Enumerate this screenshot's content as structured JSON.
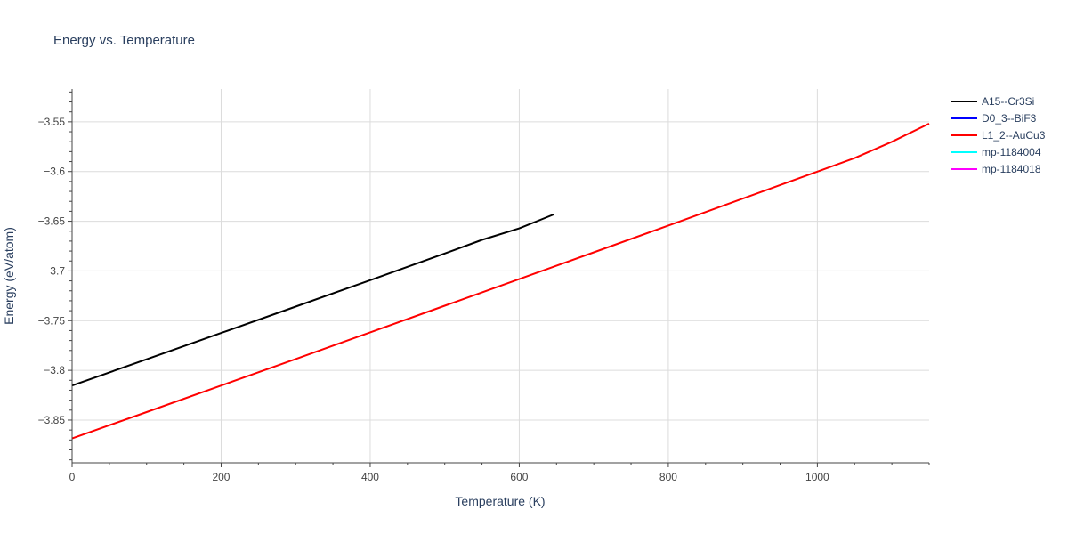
{
  "chart_data": {
    "type": "line",
    "title": "Energy vs. Temperature",
    "xlabel": "Temperature (K)",
    "ylabel": "Energy (eV/atom)",
    "xlim": [
      0,
      1150
    ],
    "ylim": [
      -3.893,
      -3.517
    ],
    "x_ticks": [
      0,
      200,
      400,
      600,
      800,
      1000
    ],
    "x_tick_labels": [
      "0",
      "200",
      "400",
      "600",
      "800",
      "1000"
    ],
    "y_ticks": [
      -3.85,
      -3.8,
      -3.75,
      -3.7,
      -3.65,
      -3.6,
      -3.55
    ],
    "y_tick_labels": [
      "−3.85",
      "−3.8",
      "−3.75",
      "−3.7",
      "−3.65",
      "−3.6",
      "−3.55"
    ],
    "grid": true,
    "legend_position": "top-right",
    "series": [
      {
        "name": "A15--Cr3Si",
        "color": "#000000",
        "x": [
          0,
          100,
          200,
          300,
          400,
          500,
          550,
          600,
          646
        ],
        "y": [
          -3.8153,
          -3.7889,
          -3.7624,
          -3.7359,
          -3.7093,
          -3.6824,
          -3.6687,
          -3.6572,
          -3.6432
        ]
      },
      {
        "name": "D0_3--BiF3",
        "color": "#0000ff",
        "x": [],
        "y": []
      },
      {
        "name": "L1_2--AuCu3",
        "color": "#ff0000",
        "x": [
          0,
          100,
          200,
          300,
          400,
          500,
          600,
          700,
          800,
          900,
          1000,
          1050,
          1100,
          1150
        ],
        "y": [
          -3.8685,
          -3.842,
          -3.8153,
          -3.7886,
          -3.7618,
          -3.735,
          -3.7082,
          -3.6813,
          -3.6543,
          -3.6272,
          -3.6001,
          -3.5865,
          -3.5701,
          -3.5518
        ]
      },
      {
        "name": "mp-1184004",
        "color": "#00ffff",
        "x": [],
        "y": []
      },
      {
        "name": "mp-1184018",
        "color": "#ff00ff",
        "x": [],
        "y": []
      }
    ]
  }
}
